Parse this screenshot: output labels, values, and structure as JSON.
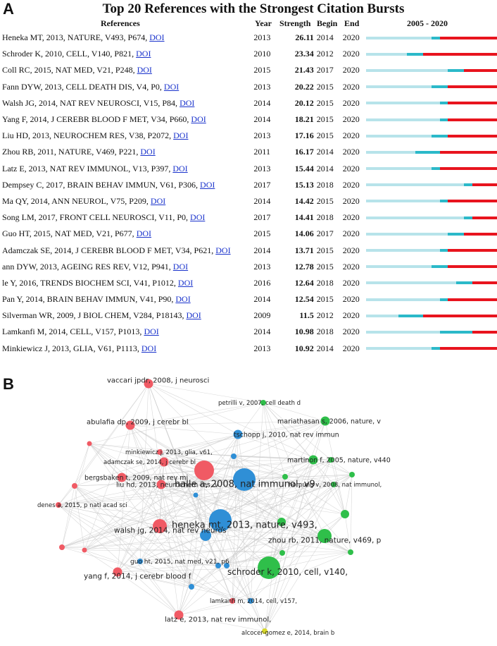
{
  "panel_a": {
    "letter": "A",
    "title": "Top 20 References with the Strongest Citation Bursts",
    "headers": {
      "references": "References",
      "year": "Year",
      "strength": "Strength",
      "begin": "Begin",
      "end": "End",
      "range": "2005 - 2020"
    },
    "doi_text": "DOI",
    "colors": {
      "background_segment": "#b7e3ea",
      "pre_burst_segment": "#2bb9c9",
      "burst_segment": "#e8141e"
    }
  },
  "panel_b": {
    "letter": "B"
  },
  "chart_data": [
    {
      "type": "table",
      "title": "Top 20 References with the Strongest Citation Bursts",
      "timeline": {
        "start": 2005,
        "end": 2020
      },
      "columns": [
        "References",
        "Year",
        "Strength",
        "Begin",
        "End",
        "2005 - 2020"
      ],
      "rows": [
        {
          "ref": "Heneka MT, 2013, NATURE, V493, P674,",
          "year": 2013,
          "strength": "26.11",
          "begin": 2014,
          "end": 2020
        },
        {
          "ref": "Schroder K, 2010, CELL, V140, P821,",
          "year": 2010,
          "strength": "23.34",
          "begin": 2012,
          "end": 2020
        },
        {
          "ref": "Coll RC, 2015, NAT MED, V21, P248,",
          "year": 2015,
          "strength": "21.43",
          "begin": 2017,
          "end": 2020
        },
        {
          "ref": "Fann DYW, 2013, CELL DEATH DIS, V4, P0,",
          "year": 2013,
          "strength": "20.22",
          "begin": 2015,
          "end": 2020
        },
        {
          "ref": "Walsh JG, 2014, NAT REV NEUROSCI, V15, P84,",
          "year": 2014,
          "strength": "20.12",
          "begin": 2015,
          "end": 2020
        },
        {
          "ref": "Yang F, 2014, J CEREBR BLOOD F MET, V34, P660,",
          "year": 2014,
          "strength": "18.21",
          "begin": 2015,
          "end": 2020
        },
        {
          "ref": "Liu HD, 2013, NEUROCHEM RES, V38, P2072,",
          "year": 2013,
          "strength": "17.16",
          "begin": 2015,
          "end": 2020
        },
        {
          "ref": "Zhou RB, 2011, NATURE, V469, P221,",
          "year": 2011,
          "strength": "16.17",
          "begin": 2014,
          "end": 2020
        },
        {
          "ref": "Latz E, 2013, NAT REV IMMUNOL, V13, P397,",
          "year": 2013,
          "strength": "15.44",
          "begin": 2014,
          "end": 2020
        },
        {
          "ref": "Dempsey C, 2017, BRAIN BEHAV IMMUN, V61, P306,",
          "year": 2017,
          "strength": "15.13",
          "begin": 2018,
          "end": 2020
        },
        {
          "ref": "Ma QY, 2014, ANN NEUROL, V75, P209,",
          "year": 2014,
          "strength": "14.42",
          "begin": 2015,
          "end": 2020
        },
        {
          "ref": "Song LM, 2017, FRONT CELL NEUROSCI, V11, P0,",
          "year": 2017,
          "strength": "14.41",
          "begin": 2018,
          "end": 2020
        },
        {
          "ref": "Guo HT, 2015, NAT MED, V21, P677,",
          "year": 2015,
          "strength": "14.06",
          "begin": 2017,
          "end": 2020
        },
        {
          "ref": "Adamczak SE, 2014, J CEREBR BLOOD F MET, V34, P621,",
          "year": 2014,
          "strength": "13.71",
          "begin": 2015,
          "end": 2020
        },
        {
          "ref": "ann DYW, 2013, AGEING RES REV, V12, P941,",
          "year": 2013,
          "strength": "12.78",
          "begin": 2015,
          "end": 2020
        },
        {
          "ref": "le Y, 2016, TRENDS BIOCHEM SCI, V41, P1012,",
          "year": 2016,
          "strength": "12.64",
          "begin": 2018,
          "end": 2020
        },
        {
          "ref": "Pan Y, 2014, BRAIN BEHAV IMMUN, V41, P90,",
          "year": 2014,
          "strength": "12.54",
          "begin": 2015,
          "end": 2020
        },
        {
          "ref": "Silverman WR, 2009, J BIOL CHEM, V284, P18143,",
          "year": 2009,
          "strength": "11.5",
          "begin": 2012,
          "end": 2020
        },
        {
          "ref": "Lamkanfi M, 2014, CELL, V157, P1013,",
          "year": 2014,
          "strength": "10.98",
          "begin": 2018,
          "end": 2020
        },
        {
          "ref": "Minkiewicz J, 2013, GLIA, V61, P1113,",
          "year": 2013,
          "strength": "10.92",
          "begin": 2014,
          "end": 2020
        }
      ]
    },
    {
      "type": "network",
      "title": "Co-citation network",
      "cluster_colors": {
        "red": "#f05a64",
        "blue": "#2f8fd6",
        "green": "#2fbf4a",
        "yellow": "#d8d82a"
      },
      "nodes": [
        {
          "id": "n1",
          "label": "vaccari jpdr, 2008, j neurosci",
          "cluster": "red",
          "size": "small"
        },
        {
          "id": "n2",
          "label": "petrilli v, 2007, cell death d",
          "cluster": "green",
          "size": "tiny"
        },
        {
          "id": "n3",
          "label": "abulafia dp, 2009, j cerebr bl",
          "cluster": "red",
          "size": "small"
        },
        {
          "id": "n4",
          "label": "mariathasan s, 2006, nature, v",
          "cluster": "green",
          "size": "small"
        },
        {
          "id": "n5",
          "label": "tschopp j, 2010, nat rev immun",
          "cluster": "blue",
          "size": "small"
        },
        {
          "id": "n6",
          "label": "minkiewicz j, 2013, glia, v61,",
          "cluster": "red",
          "size": "tiny"
        },
        {
          "id": "n7",
          "label": "adamczak se, 2014, j cerebr bl",
          "cluster": "red",
          "size": "small"
        },
        {
          "id": "n8",
          "label": "martinon f, 2005, nature, v440",
          "cluster": "green",
          "size": "small"
        },
        {
          "id": "n9",
          "label": "halle a, 2008, nat immunol, v9",
          "cluster": "blue",
          "size": "large"
        },
        {
          "id": "n10",
          "label": "bergsbaken t, 2009, nat rev mi",
          "cluster": "red",
          "size": "small"
        },
        {
          "id": "n11",
          "label": "liu hd, 2013, neurochem res, v",
          "cluster": "red",
          "size": "small"
        },
        {
          "id": "n12",
          "label": "hornung v, 2008, nat immunol,",
          "cluster": "green",
          "size": "tiny"
        },
        {
          "id": "n13",
          "label": "denes a, 2015, p natl acad sci",
          "cluster": "red",
          "size": "tiny"
        },
        {
          "id": "n14",
          "label": "heneka mt, 2013, nature, v493,",
          "cluster": "blue",
          "size": "large"
        },
        {
          "id": "n15",
          "label": "walsh jg, 2014, nat rev neuros",
          "cluster": "red",
          "size": "medium"
        },
        {
          "id": "n16",
          "label": "zhou rb, 2011, nature, v469, p",
          "cluster": "green",
          "size": "medium"
        },
        {
          "id": "n17",
          "label": "guo ht, 2015, nat med, v21, p6",
          "cluster": "blue",
          "size": "tiny"
        },
        {
          "id": "n18",
          "label": "schroder k, 2010, cell, v140,",
          "cluster": "green",
          "size": "large"
        },
        {
          "id": "n19",
          "label": "yang f, 2014, j cerebr blood f",
          "cluster": "red",
          "size": "small"
        },
        {
          "id": "n20",
          "label": "lamkanfi m, 2014, cell, v157,",
          "cluster": "blue",
          "size": "tiny"
        },
        {
          "id": "n21",
          "label": "latz e, 2013, nat rev immunol,",
          "cluster": "red",
          "size": "small"
        },
        {
          "id": "n22",
          "label": "alcocer-gomez e, 2014, brain b",
          "cluster": "yellow",
          "size": "tiny"
        }
      ]
    }
  ]
}
